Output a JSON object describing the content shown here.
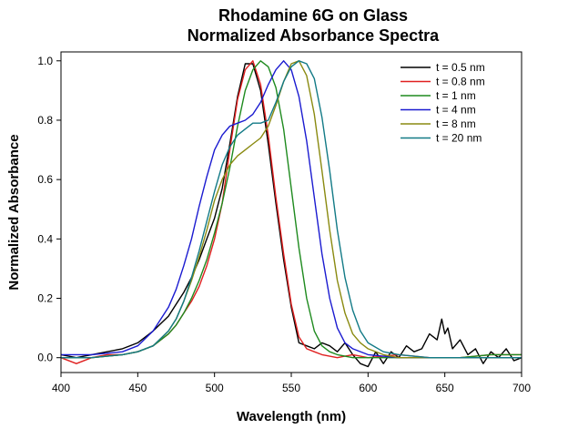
{
  "chart_data": {
    "type": "line",
    "title": [
      "Rhodamine 6G on Glass",
      "Normalized Absorbance Spectra"
    ],
    "xlabel": "Wavelength (nm)",
    "ylabel": "Normalized Absorbance",
    "xlim": [
      400,
      700
    ],
    "ylim": [
      -0.05,
      1.03
    ],
    "xticks": [
      400,
      450,
      500,
      550,
      600,
      650,
      700
    ],
    "yticks": [
      0.0,
      0.2,
      0.4,
      0.6,
      0.8,
      1.0
    ],
    "xtick_labels": [
      "400",
      "450",
      "500",
      "550",
      "600",
      "650",
      "700"
    ],
    "ytick_labels": [
      "0.0",
      "0.2",
      "0.4",
      "0.6",
      "0.8",
      "1.0"
    ],
    "grid": false,
    "legend_position": "top-right",
    "series": [
      {
        "name": "t = 0.5 nm",
        "color": "#000000",
        "x": [
          400,
          410,
          420,
          430,
          440,
          450,
          460,
          470,
          475,
          480,
          485,
          490,
          495,
          500,
          505,
          510,
          515,
          520,
          525,
          530,
          535,
          540,
          545,
          550,
          555,
          560,
          565,
          570,
          575,
          580,
          585,
          590,
          595,
          600,
          605,
          610,
          615,
          620,
          625,
          630,
          635,
          640,
          645,
          648,
          650,
          652,
          655,
          660,
          665,
          670,
          675,
          680,
          685,
          690,
          695,
          700
        ],
        "y": [
          0.01,
          0.0,
          0.01,
          0.02,
          0.03,
          0.05,
          0.09,
          0.14,
          0.18,
          0.22,
          0.27,
          0.33,
          0.4,
          0.47,
          0.57,
          0.72,
          0.88,
          0.99,
          0.99,
          0.9,
          0.72,
          0.52,
          0.33,
          0.17,
          0.05,
          0.04,
          0.03,
          0.05,
          0.04,
          0.02,
          0.05,
          0.01,
          -0.02,
          -0.03,
          0.02,
          -0.02,
          0.02,
          0.0,
          0.04,
          0.02,
          0.03,
          0.08,
          0.06,
          0.13,
          0.08,
          0.1,
          0.03,
          0.06,
          0.01,
          0.03,
          -0.02,
          0.02,
          0.0,
          0.03,
          -0.01,
          0.0
        ]
      },
      {
        "name": "t = 0.8 nm",
        "color": "#e02020",
        "x": [
          400,
          410,
          420,
          430,
          440,
          450,
          460,
          470,
          475,
          480,
          485,
          490,
          495,
          500,
          505,
          510,
          515,
          520,
          525,
          530,
          535,
          540,
          545,
          550,
          555,
          560,
          565,
          570,
          580,
          590,
          600,
          620,
          640,
          660,
          680,
          700
        ],
        "y": [
          0.0,
          -0.02,
          0.0,
          0.01,
          0.01,
          0.02,
          0.04,
          0.08,
          0.11,
          0.15,
          0.19,
          0.24,
          0.31,
          0.4,
          0.52,
          0.7,
          0.87,
          0.97,
          1.0,
          0.92,
          0.75,
          0.54,
          0.35,
          0.18,
          0.07,
          0.03,
          0.02,
          0.01,
          0.0,
          0.01,
          0.0,
          0.01,
          0.0,
          0.0,
          0.01,
          0.01
        ]
      },
      {
        "name": "t = 1 nm",
        "color": "#1e8a1e",
        "x": [
          400,
          420,
          440,
          450,
          460,
          470,
          475,
          480,
          485,
          490,
          495,
          500,
          505,
          510,
          515,
          520,
          525,
          530,
          535,
          540,
          545,
          550,
          555,
          560,
          565,
          570,
          575,
          580,
          590,
          600,
          620,
          640,
          660,
          680,
          700
        ],
        "y": [
          0.0,
          0.0,
          0.01,
          0.02,
          0.04,
          0.08,
          0.11,
          0.15,
          0.2,
          0.26,
          0.33,
          0.42,
          0.52,
          0.64,
          0.78,
          0.9,
          0.97,
          1.0,
          0.98,
          0.91,
          0.77,
          0.57,
          0.37,
          0.2,
          0.09,
          0.04,
          0.02,
          0.01,
          0.0,
          0.0,
          0.0,
          0.0,
          0.0,
          0.01,
          0.01
        ]
      },
      {
        "name": "t = 4 nm",
        "color": "#1a1ad0",
        "x": [
          400,
          420,
          440,
          450,
          460,
          470,
          475,
          480,
          485,
          490,
          495,
          500,
          505,
          510,
          515,
          520,
          525,
          530,
          535,
          540,
          545,
          550,
          555,
          560,
          565,
          570,
          575,
          580,
          585,
          590,
          600,
          620,
          640,
          660,
          680,
          700
        ],
        "y": [
          0.01,
          0.01,
          0.02,
          0.04,
          0.09,
          0.17,
          0.23,
          0.31,
          0.4,
          0.51,
          0.61,
          0.7,
          0.75,
          0.78,
          0.79,
          0.8,
          0.82,
          0.86,
          0.92,
          0.97,
          1.0,
          0.97,
          0.88,
          0.73,
          0.54,
          0.35,
          0.2,
          0.1,
          0.05,
          0.03,
          0.01,
          0.0,
          0.0,
          0.0,
          0.0,
          0.0
        ]
      },
      {
        "name": "t = 8 nm",
        "color": "#8a8a10",
        "x": [
          400,
          420,
          440,
          450,
          460,
          470,
          475,
          480,
          485,
          490,
          495,
          500,
          505,
          510,
          515,
          520,
          525,
          530,
          535,
          540,
          545,
          550,
          555,
          560,
          565,
          570,
          575,
          580,
          585,
          590,
          595,
          600,
          610,
          620,
          640,
          660,
          680,
          700
        ],
        "y": [
          0.0,
          0.0,
          0.01,
          0.02,
          0.04,
          0.09,
          0.13,
          0.19,
          0.26,
          0.34,
          0.43,
          0.53,
          0.6,
          0.65,
          0.68,
          0.7,
          0.72,
          0.74,
          0.78,
          0.85,
          0.93,
          0.99,
          1.0,
          0.95,
          0.82,
          0.63,
          0.43,
          0.26,
          0.15,
          0.08,
          0.05,
          0.03,
          0.01,
          0.0,
          0.0,
          0.0,
          0.0,
          0.0
        ]
      },
      {
        "name": "t = 20 nm",
        "color": "#127a86",
        "x": [
          400,
          420,
          440,
          450,
          460,
          470,
          475,
          480,
          485,
          490,
          495,
          500,
          505,
          510,
          515,
          520,
          525,
          530,
          535,
          540,
          545,
          550,
          555,
          560,
          565,
          570,
          575,
          580,
          585,
          590,
          595,
          600,
          610,
          620,
          640,
          660,
          680,
          700
        ],
        "y": [
          0.0,
          0.0,
          0.01,
          0.02,
          0.04,
          0.09,
          0.13,
          0.19,
          0.27,
          0.36,
          0.46,
          0.56,
          0.65,
          0.71,
          0.75,
          0.77,
          0.79,
          0.79,
          0.8,
          0.86,
          0.93,
          0.98,
          1.0,
          0.99,
          0.94,
          0.81,
          0.63,
          0.43,
          0.27,
          0.16,
          0.09,
          0.05,
          0.02,
          0.01,
          0.0,
          0.0,
          0.0,
          0.0
        ]
      }
    ]
  }
}
